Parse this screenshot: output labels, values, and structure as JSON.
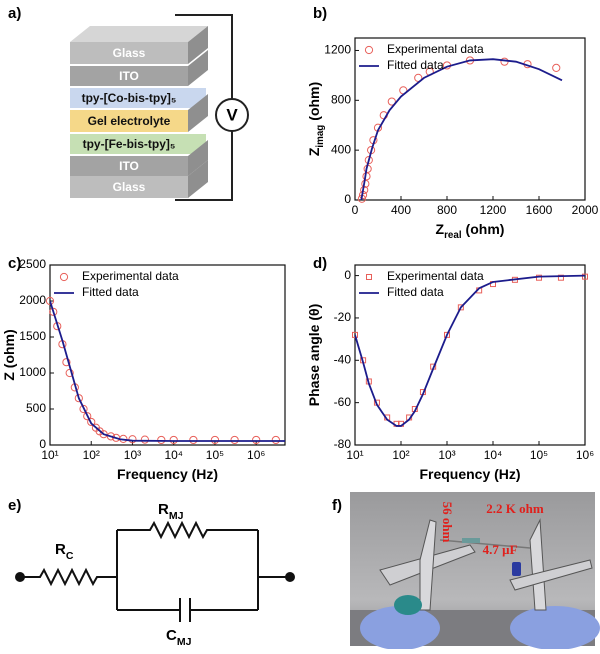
{
  "panel_labels": [
    "a)",
    "b)",
    "c)",
    "d)",
    "e)",
    "f)"
  ],
  "device": {
    "layers": [
      "Glass",
      "ITO",
      "tpy-[Co-bis-tpy]₅",
      "Gel electrolyte",
      "tpy-[Fe-bis-tpy]₅",
      "ITO",
      "Glass"
    ],
    "meter": "V"
  },
  "chart_data": [
    {
      "type": "scatter",
      "x_label": [
        "Z",
        "real",
        "(ohm)"
      ],
      "y_label": [
        "Z",
        "imag",
        "(ohm)"
      ],
      "xlim": [
        0,
        2000
      ],
      "xticks": [
        0,
        400,
        800,
        1200,
        1600,
        2000
      ],
      "ylim": [
        0,
        1300
      ],
      "yticks": [
        0,
        400,
        800,
        1200
      ],
      "legend": "upper left",
      "series": [
        {
          "name": "Experimental data",
          "color": "#e8605a",
          "marker": "circle",
          "x": [
            60,
            70,
            80,
            90,
            100,
            110,
            120,
            140,
            160,
            200,
            250,
            320,
            420,
            550,
            650,
            800,
            1000,
            1300,
            1500,
            1750
          ],
          "values": [
            10,
            40,
            80,
            130,
            190,
            250,
            320,
            400,
            480,
            580,
            680,
            790,
            880,
            980,
            1030,
            1080,
            1120,
            1110,
            1090,
            1060
          ]
        },
        {
          "name": "Fitted data",
          "color": "#1c1c8c",
          "marker": "line",
          "x": [
            55,
            70,
            85,
            100,
            150,
            200,
            300,
            400,
            600,
            800,
            1000,
            1200,
            1400,
            1600,
            1800
          ],
          "values": [
            0,
            80,
            160,
            250,
            420,
            560,
            720,
            830,
            980,
            1070,
            1120,
            1130,
            1110,
            1050,
            960
          ]
        }
      ]
    },
    {
      "type": "scatter",
      "x_label": [
        "Frequency (Hz)"
      ],
      "y_label": [
        "Z (ohm)"
      ],
      "xscale": "log",
      "xlim": [
        10,
        5000000
      ],
      "xticks": [
        {
          "value": 10,
          "label": "10¹"
        },
        {
          "value": 100,
          "label": "10²"
        },
        {
          "value": 1000,
          "label": "10³"
        },
        {
          "value": 10000,
          "label": "10⁴"
        },
        {
          "value": 100000,
          "label": "10⁵"
        },
        {
          "value": 1000000,
          "label": "10⁶"
        }
      ],
      "ylim": [
        0,
        2500
      ],
      "yticks": [
        0,
        500,
        1000,
        1500,
        2000,
        2500
      ],
      "legend": "upper left",
      "series": [
        {
          "name": "Experimental data",
          "color": "#e8605a",
          "marker": "circle",
          "x": [
            10,
            12,
            15,
            20,
            25,
            30,
            40,
            50,
            65,
            80,
            100,
            130,
            160,
            200,
            300,
            400,
            600,
            1000,
            2000,
            5000,
            10000,
            30000,
            100000,
            300000,
            1000000,
            3000000
          ],
          "values": [
            2000,
            1850,
            1650,
            1400,
            1150,
            1000,
            800,
            650,
            500,
            400,
            320,
            240,
            190,
            150,
            120,
            100,
            85,
            80,
            75,
            70,
            70,
            70,
            70,
            70,
            70,
            70
          ]
        },
        {
          "name": "Fitted data",
          "color": "#1c1c8c",
          "marker": "line",
          "x": [
            10,
            20,
            50,
            100,
            200,
            500,
            1000,
            10000,
            1000000,
            5000000
          ],
          "values": [
            2000,
            1450,
            650,
            300,
            150,
            80,
            60,
            56,
            56,
            56
          ]
        }
      ]
    },
    {
      "type": "scatter",
      "x_label": [
        "Frequency (Hz)"
      ],
      "y_label": [
        "Phase angle (θ)"
      ],
      "xscale": "log",
      "xlim": [
        10,
        1000000
      ],
      "xticks": [
        {
          "value": 10,
          "label": "10¹"
        },
        {
          "value": 100,
          "label": "10²"
        },
        {
          "value": 1000,
          "label": "10³"
        },
        {
          "value": 10000,
          "label": "10⁴"
        },
        {
          "value": 100000,
          "label": "10⁵"
        },
        {
          "value": 1000000,
          "label": "10⁶"
        }
      ],
      "ylim": [
        -80,
        5
      ],
      "yticks": [
        -80,
        -60,
        -40,
        -20,
        0
      ],
      "legend": "upper left",
      "series": [
        {
          "name": "Experimental data",
          "color": "#e8605a",
          "marker": "square",
          "x": [
            10,
            15,
            20,
            30,
            50,
            80,
            100,
            150,
            200,
            300,
            500,
            1000,
            2000,
            5000,
            10000,
            30000,
            100000,
            300000,
            1000000
          ],
          "values": [
            -28,
            -40,
            -50,
            -60,
            -67,
            -70,
            -70,
            -67,
            -63,
            -55,
            -43,
            -28,
            -15,
            -7,
            -4,
            -2,
            -1,
            -1,
            -0.5
          ]
        },
        {
          "name": "Fitted data",
          "color": "#1c1c8c",
          "marker": "line",
          "x": [
            10,
            15,
            20,
            30,
            50,
            80,
            100,
            150,
            200,
            300,
            500,
            1000,
            2000,
            5000,
            10000,
            100000,
            1000000
          ],
          "values": [
            -28,
            -41,
            -51,
            -61,
            -68,
            -71,
            -71,
            -68,
            -64,
            -56,
            -44,
            -28,
            -15,
            -6,
            -3,
            -0.5,
            0
          ]
        }
      ]
    }
  ],
  "circuit": {
    "rc": [
      "R",
      "C"
    ],
    "rmj": [
      "R",
      "MJ"
    ],
    "cmj": [
      "C",
      "MJ"
    ]
  },
  "photo": {
    "labels": [
      "56 ohm",
      "2.2 K ohm",
      "4.7 μF"
    ]
  }
}
